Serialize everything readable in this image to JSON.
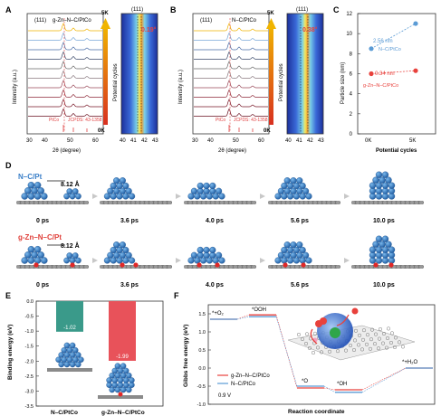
{
  "panels": {
    "A": {
      "letter": "A",
      "peak_label": "(111)",
      "peak_label2": "(111)",
      "legend": "g-Zn–N–C/PtCo",
      "ylabel": "Intensity (a.u.)",
      "xlabel": "2θ (degree)",
      "ticks_main": [
        "30",
        "40",
        "50",
        "60"
      ],
      "ticks_zoom": [
        "40",
        "41",
        "42",
        "43"
      ],
      "ref_label_a": "PtCo",
      "ref_label_b": "JCPDS: 43-1358",
      "shift": "0.19°",
      "cycles_top": "5K",
      "cycles_bottom": "0K",
      "cycles_label": "Potential cycles",
      "colors": [
        "#f0b400",
        "#7aa8d8",
        "#4a6ea8",
        "#3b4a6b",
        "#6a6a6a",
        "#8a7a80",
        "#9a4a5a",
        "#8e2a3a",
        "#7a1a2a",
        "#6a1020"
      ]
    },
    "B": {
      "letter": "B",
      "peak_label": "(111)",
      "peak_label2": "(111)",
      "legend": "N–C/PtCo",
      "ylabel": "Intensity (a.u.)",
      "xlabel": "2θ (degree)",
      "ticks_main": [
        "30",
        "40",
        "50",
        "60"
      ],
      "ticks_zoom": [
        "40",
        "41",
        "42",
        "43"
      ],
      "ref_label_a": "PtCo",
      "ref_label_b": "JCPDS: 43-1358",
      "shift": "0.38°",
      "cycles_top": "5K",
      "cycles_bottom": "0K",
      "cycles_label": "Potential cycles"
    },
    "C": {
      "letter": "C",
      "ylabel": "Particle size (nm)",
      "xlabel": "Potential cycles",
      "yticks": [
        "0",
        "2",
        "4",
        "6",
        "8",
        "10",
        "12"
      ],
      "xticks": [
        "0K",
        "5K"
      ],
      "label_nc": "2.56 nm",
      "name_nc": "N–C/PtCo",
      "label_zn": "0.34 nm",
      "name_zn": "g-Zn–N–C/PtCo",
      "chart_data": {
        "type": "scatter",
        "ylim": [
          0,
          12
        ],
        "series": [
          {
            "name": "N–C/PtCo",
            "x": [
              "0K",
              "5K"
            ],
            "values": [
              8.5,
              11.0
            ],
            "color": "#5b9bd5"
          },
          {
            "name": "g-Zn–N–C/PtCo",
            "x": [
              "0K",
              "5K"
            ],
            "values": [
              6.0,
              6.3
            ],
            "color": "#e8413c"
          }
        ]
      }
    },
    "D": {
      "letter": "D",
      "row1_title": "N–C/Pt",
      "row2_title": "g-Zn–N–C/Pt",
      "distance": "8.12 Å",
      "times": [
        "0 ps",
        "3.6 ps",
        "4.0 ps",
        "5.6 ps",
        "10.0 ps"
      ]
    },
    "E": {
      "letter": "E",
      "ylabel": "Binding energy (eV)",
      "yticks": [
        "0.0",
        "-0.5",
        "-1.0",
        "-1.5",
        "-2.0",
        "-2.5",
        "-3.0",
        "-3.5"
      ],
      "cat1": "N–C/PtCo",
      "cat2": "g-Zn–N–C/PtCo",
      "chart_data": {
        "type": "bar",
        "categories": [
          "N–C/PtCo",
          "g-Zn–N–C/PtCo"
        ],
        "values": [
          -1.02,
          -1.99
        ],
        "value_labels": [
          "-1.02",
          "-1.99"
        ],
        "colors": [
          "#3a9a8a",
          "#e8525a"
        ],
        "ylim": [
          -3.5,
          0
        ]
      }
    },
    "F": {
      "letter": "F",
      "ylabel": "Gibbs free energy (eV)",
      "xlabel": "Reaction coordinate",
      "yticks": [
        "1.5",
        "1.0",
        "0.5",
        "0.0",
        "-0.5",
        "-1.0"
      ],
      "states": [
        "*+O₂",
        "*OOH",
        "*O",
        "*OH",
        "*+H₂O"
      ],
      "legend1": "g-Zn–N–C/PtCo",
      "legend2": "N–C/PtCo",
      "voltage": "0.9 V",
      "chart_data": {
        "type": "line",
        "ylim": [
          -1.0,
          1.75
        ],
        "series": [
          {
            "name": "g-Zn–N–C/PtCo",
            "values": [
              1.35,
              1.47,
              -0.55,
              -0.6,
              0.0
            ],
            "color": "#e8413c"
          },
          {
            "name": "N–C/PtCo",
            "values": [
              1.35,
              1.42,
              -0.5,
              -0.67,
              0.0
            ],
            "color": "#5b9bd5"
          }
        ]
      }
    }
  }
}
